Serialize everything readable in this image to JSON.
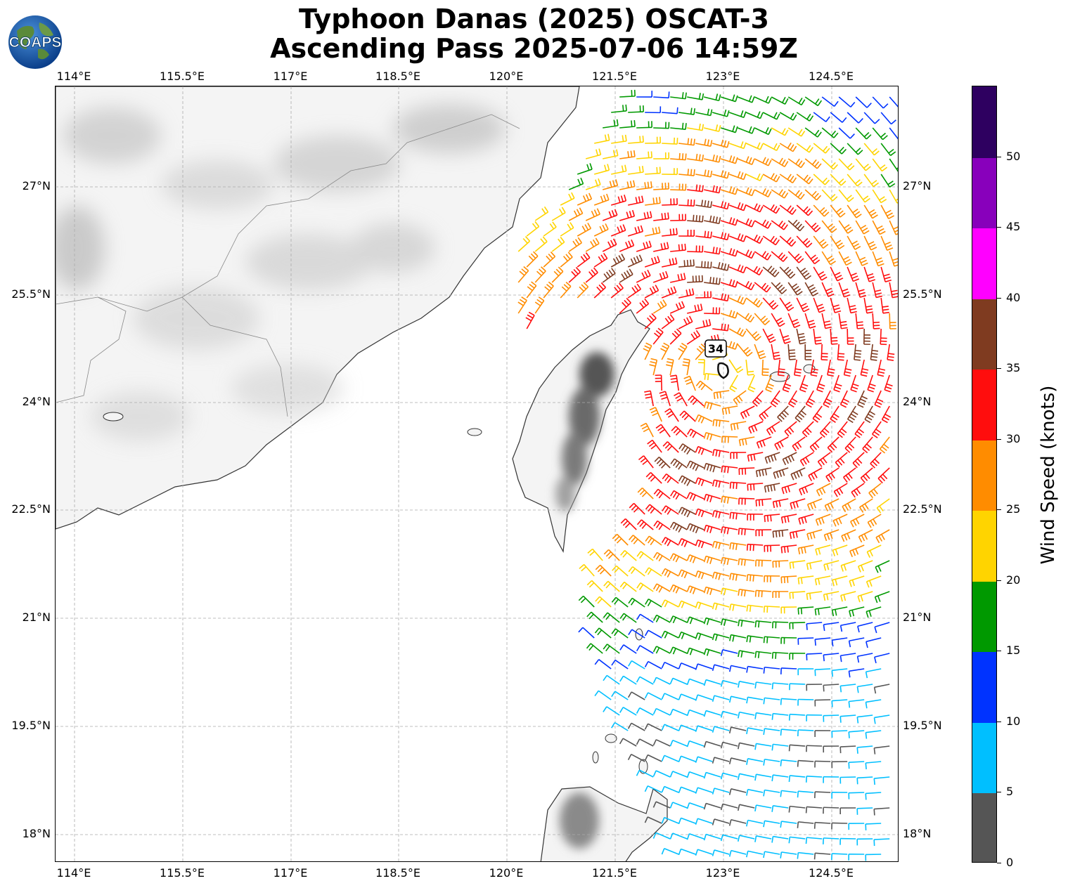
{
  "title": {
    "line1": "Typhoon Danas (2025) OSCAT-3",
    "line2": "Ascending Pass 2025-07-06 14:59Z"
  },
  "logo": {
    "text": "COAPS"
  },
  "map": {
    "lon_labels": [
      "114°E",
      "115.5°E",
      "117°E",
      "118.5°E",
      "120°E",
      "121.5°E",
      "123°E",
      "124.5°E"
    ],
    "lat_labels": [
      "27°N",
      "25.5°N",
      "24°N",
      "22.5°N",
      "21°N",
      "19.5°N",
      "18°N"
    ],
    "storm_label": "34",
    "colors": {
      "land_shade": "#9a9a9a",
      "coast": "#333333",
      "grid": "#aaaaaa"
    }
  },
  "colorbar": {
    "label": "Wind Speed (knots)",
    "ticks": [
      "0",
      "5",
      "10",
      "15",
      "20",
      "25",
      "30",
      "35",
      "40",
      "45",
      "50"
    ],
    "colors": [
      "#555555",
      "#00bfff",
      "#0033ff",
      "#009900",
      "#ffd400",
      "#ff8c00",
      "#ff0d0d",
      "#7f3b20",
      "#ff00ff",
      "#8800bb",
      "#2e0060"
    ]
  }
}
